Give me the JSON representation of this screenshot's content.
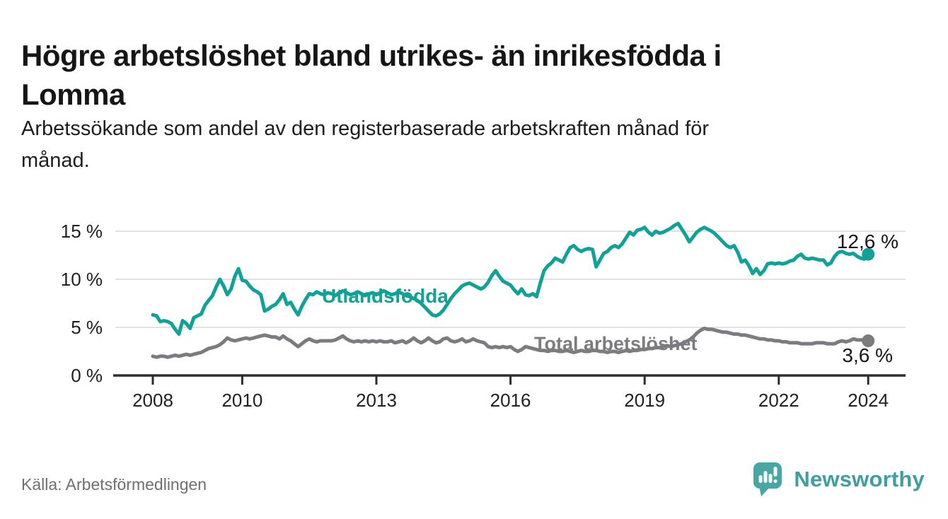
{
  "header": {
    "title_line1": "Högre arbetslöshet bland utrikes- än inrikesfödda i",
    "title_line2": "Lomma",
    "subtitle_line1": "Arbetssökande som andel av den registerbaserade arbetskraften månad för",
    "subtitle_line2": "månad."
  },
  "footer": {
    "source": "Källa: Arbetsförmedlingen",
    "brand": "Newsworthy",
    "brand_color": "#3f9f9e",
    "logo_icon": "speech-bubble-bar-chart-icon",
    "logo_bubble_color": "#48a7a2"
  },
  "chart_data": {
    "type": "line",
    "title": "Högre arbetslöshet bland utrikes- än inrikesfödda i Lomma",
    "subtitle": "Arbetssökande som andel av den registerbaserade arbetskraften månad för månad.",
    "x_start_year": 2008,
    "x_interval": "monthly",
    "x_end": "2024-01",
    "xticks": [
      2008,
      2010,
      2013,
      2016,
      2019,
      2022,
      2024
    ],
    "yticks": [
      0,
      5,
      10,
      15
    ],
    "ytick_suffix": " %",
    "ylim": [
      0,
      16.5
    ],
    "grid": true,
    "legend_position": "inline-labels",
    "axis_color": "#2e2e2e",
    "grid_color": "#d9d9d9",
    "series": [
      {
        "name": "Utlandsfödda",
        "color": "#10a296",
        "end_value": 12.6,
        "end_label": "12,6 %",
        "values": [
          6.3,
          6.2,
          5.6,
          5.7,
          5.6,
          5.4,
          4.8,
          4.3,
          5.7,
          5.4,
          4.9,
          6.0,
          6.2,
          6.4,
          7.3,
          7.8,
          8.3,
          9.2,
          10.0,
          9.3,
          8.4,
          9.0,
          10.3,
          11.1,
          9.9,
          9.8,
          9.3,
          8.9,
          8.7,
          8.4,
          6.7,
          6.9,
          7.2,
          7.4,
          7.9,
          8.5,
          7.4,
          7.6,
          6.9,
          6.3,
          7.2,
          7.9,
          8.5,
          8.4,
          8.7,
          8.5,
          8.4,
          8.6,
          8.5,
          8.3,
          8.6,
          8.8,
          8.6,
          8.4,
          8.5,
          8.7,
          8.5,
          8.3,
          8.5,
          8.6,
          8.4,
          8.6,
          8.8,
          8.6,
          8.4,
          8.5,
          8.7,
          8.5,
          8.3,
          8.2,
          8.0,
          7.8,
          7.5,
          7.1,
          6.7,
          6.3,
          6.2,
          6.4,
          6.8,
          7.4,
          8.0,
          8.5,
          8.9,
          9.3,
          9.5,
          9.6,
          9.4,
          9.2,
          9.0,
          9.2,
          9.7,
          10.4,
          10.9,
          10.3,
          9.8,
          9.6,
          9.4,
          8.9,
          8.5,
          9.0,
          8.4,
          8.3,
          8.5,
          8.2,
          9.6,
          10.9,
          11.4,
          11.7,
          12.2,
          12.0,
          11.8,
          12.6,
          13.3,
          13.5,
          13.1,
          12.9,
          13.1,
          13.2,
          13.1,
          11.3,
          12.0,
          12.7,
          12.9,
          13.3,
          13.5,
          13.3,
          13.7,
          14.3,
          14.9,
          14.6,
          15.1,
          15.2,
          15.4,
          14.9,
          14.6,
          15.0,
          14.8,
          14.9,
          15.1,
          15.3,
          15.6,
          15.8,
          15.2,
          14.6,
          13.9,
          14.4,
          14.9,
          15.2,
          15.4,
          15.2,
          15.0,
          14.7,
          14.3,
          13.9,
          13.5,
          13.3,
          13.5,
          12.8,
          11.8,
          12.0,
          11.4,
          10.6,
          11.1,
          10.5,
          10.9,
          11.6,
          11.7,
          11.6,
          11.7,
          11.6,
          11.7,
          11.9,
          12.0,
          12.4,
          12.6,
          12.2,
          12.1,
          12.2,
          12.1,
          12.0,
          12.0,
          11.5,
          11.7,
          12.4,
          12.8,
          12.9,
          12.7,
          12.6,
          12.7,
          12.4,
          12.2,
          12.1,
          12.6
        ]
      },
      {
        "name": "Total arbetslöshet",
        "color": "#7b7b80",
        "end_value": 3.6,
        "end_label": "3,6 %",
        "values": [
          2.0,
          1.9,
          2.0,
          2.0,
          1.9,
          2.0,
          2.1,
          2.0,
          2.1,
          2.2,
          2.1,
          2.2,
          2.3,
          2.4,
          2.6,
          2.8,
          2.9,
          3.0,
          3.2,
          3.5,
          3.9,
          3.7,
          3.6,
          3.7,
          3.8,
          3.9,
          3.8,
          3.9,
          4.0,
          4.1,
          4.2,
          4.1,
          4.0,
          4.0,
          3.8,
          4.1,
          3.8,
          3.6,
          3.3,
          3.0,
          3.3,
          3.6,
          3.8,
          3.6,
          3.5,
          3.6,
          3.6,
          3.6,
          3.6,
          3.7,
          3.9,
          4.1,
          3.8,
          3.6,
          3.5,
          3.6,
          3.5,
          3.6,
          3.5,
          3.6,
          3.5,
          3.6,
          3.5,
          3.5,
          3.6,
          3.4,
          3.5,
          3.6,
          3.4,
          3.6,
          3.9,
          3.6,
          3.4,
          3.6,
          3.9,
          3.6,
          3.4,
          3.5,
          3.8,
          3.9,
          3.6,
          3.5,
          3.6,
          3.8,
          3.5,
          3.6,
          3.8,
          3.6,
          3.5,
          3.4,
          3.0,
          2.9,
          3.0,
          2.9,
          3.0,
          2.9,
          3.0,
          2.7,
          2.5,
          2.7,
          3.0,
          2.9,
          2.8,
          2.7,
          2.6,
          2.6,
          2.5,
          2.6,
          2.6,
          2.5,
          2.5,
          2.6,
          2.5,
          2.4,
          2.5,
          2.6,
          2.5,
          2.5,
          2.6,
          2.6,
          2.5,
          2.5,
          2.4,
          2.5,
          2.5,
          2.4,
          2.5,
          2.6,
          2.5,
          2.6,
          2.6,
          2.7,
          2.7,
          2.8,
          2.8,
          2.9,
          2.9,
          3.0,
          3.1,
          3.0,
          3.1,
          3.2,
          3.3,
          3.5,
          3.7,
          4.0,
          4.4,
          4.7,
          4.9,
          4.8,
          4.8,
          4.7,
          4.6,
          4.5,
          4.5,
          4.4,
          4.3,
          4.3,
          4.2,
          4.2,
          4.1,
          4.0,
          3.9,
          3.8,
          3.8,
          3.7,
          3.7,
          3.6,
          3.6,
          3.5,
          3.5,
          3.4,
          3.4,
          3.4,
          3.3,
          3.3,
          3.3,
          3.3,
          3.4,
          3.4,
          3.4,
          3.3,
          3.3,
          3.3,
          3.5,
          3.6,
          3.5,
          3.6,
          3.8,
          3.7,
          3.7,
          3.7,
          3.6
        ]
      }
    ]
  }
}
